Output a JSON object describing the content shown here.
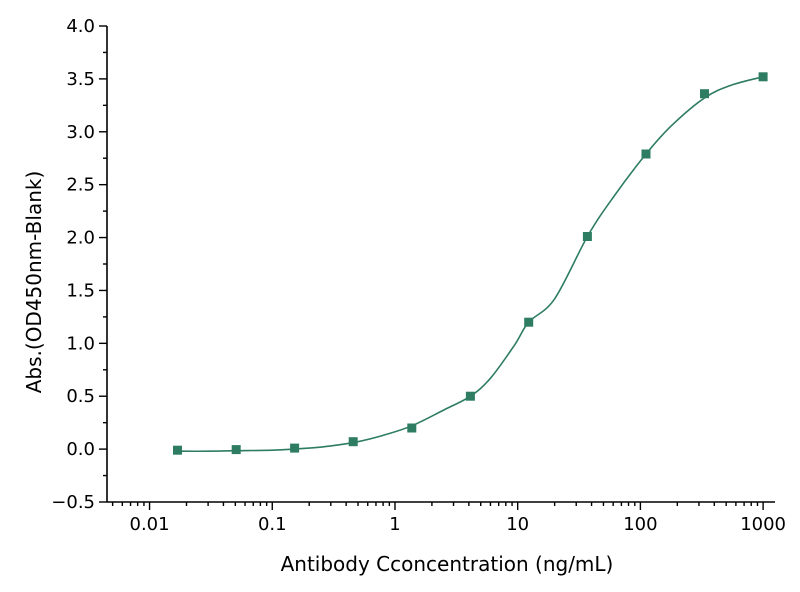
{
  "chart_data": {
    "type": "scatter",
    "title": "",
    "xlabel": "Antibody Cconcentration (ng/mL)",
    "ylabel": "Abs.(OD450nm-Blank)",
    "xscale": "log",
    "xlim": [
      0.0045,
      1250
    ],
    "ylim": [
      -0.5,
      4.0
    ],
    "x_tick_labels": [
      "0.01",
      "0.1",
      "1",
      "10",
      "100",
      "1000"
    ],
    "x_ticks": [
      0.01,
      0.1,
      1,
      10,
      100,
      1000
    ],
    "y_tick_labels": [
      "−0.5",
      "0.0",
      "0.5",
      "1.0",
      "1.5",
      "2.0",
      "2.5",
      "3.0",
      "3.5",
      "4.0"
    ],
    "y_ticks": [
      -0.5,
      0.0,
      0.5,
      1.0,
      1.5,
      2.0,
      2.5,
      3.0,
      3.5,
      4.0
    ],
    "grid": false,
    "legend": "none",
    "color": "#2e7d62",
    "points": [
      {
        "x": 0.0169,
        "y": -0.01
      },
      {
        "x": 0.0508,
        "y": -0.005
      },
      {
        "x": 0.152,
        "y": 0.01
      },
      {
        "x": 0.457,
        "y": 0.07
      },
      {
        "x": 1.37,
        "y": 0.2
      },
      {
        "x": 4.12,
        "y": 0.5
      },
      {
        "x": 12.3,
        "y": 1.2
      },
      {
        "x": 37.0,
        "y": 2.01
      },
      {
        "x": 111,
        "y": 2.79
      },
      {
        "x": 333,
        "y": 3.36
      },
      {
        "x": 1000,
        "y": 3.52
      }
    ],
    "fit_curve": [
      {
        "x": 0.0169,
        "y": -0.02
      },
      {
        "x": 0.03,
        "y": -0.02
      },
      {
        "x": 0.05,
        "y": -0.015
      },
      {
        "x": 0.1,
        "y": -0.01
      },
      {
        "x": 0.2,
        "y": 0.01
      },
      {
        "x": 0.3,
        "y": 0.03
      },
      {
        "x": 0.5,
        "y": 0.07
      },
      {
        "x": 0.8,
        "y": 0.13
      },
      {
        "x": 1.37,
        "y": 0.22
      },
      {
        "x": 2.5,
        "y": 0.37
      },
      {
        "x": 4.12,
        "y": 0.5
      },
      {
        "x": 6,
        "y": 0.67
      },
      {
        "x": 9.5,
        "y": 0.99
      },
      {
        "x": 12.3,
        "y": 1.2
      },
      {
        "x": 20,
        "y": 1.42
      },
      {
        "x": 37.0,
        "y": 2.01
      },
      {
        "x": 60,
        "y": 2.38
      },
      {
        "x": 111,
        "y": 2.79
      },
      {
        "x": 180,
        "y": 3.06
      },
      {
        "x": 333,
        "y": 3.32
      },
      {
        "x": 550,
        "y": 3.44
      },
      {
        "x": 1000,
        "y": 3.52
      }
    ]
  }
}
